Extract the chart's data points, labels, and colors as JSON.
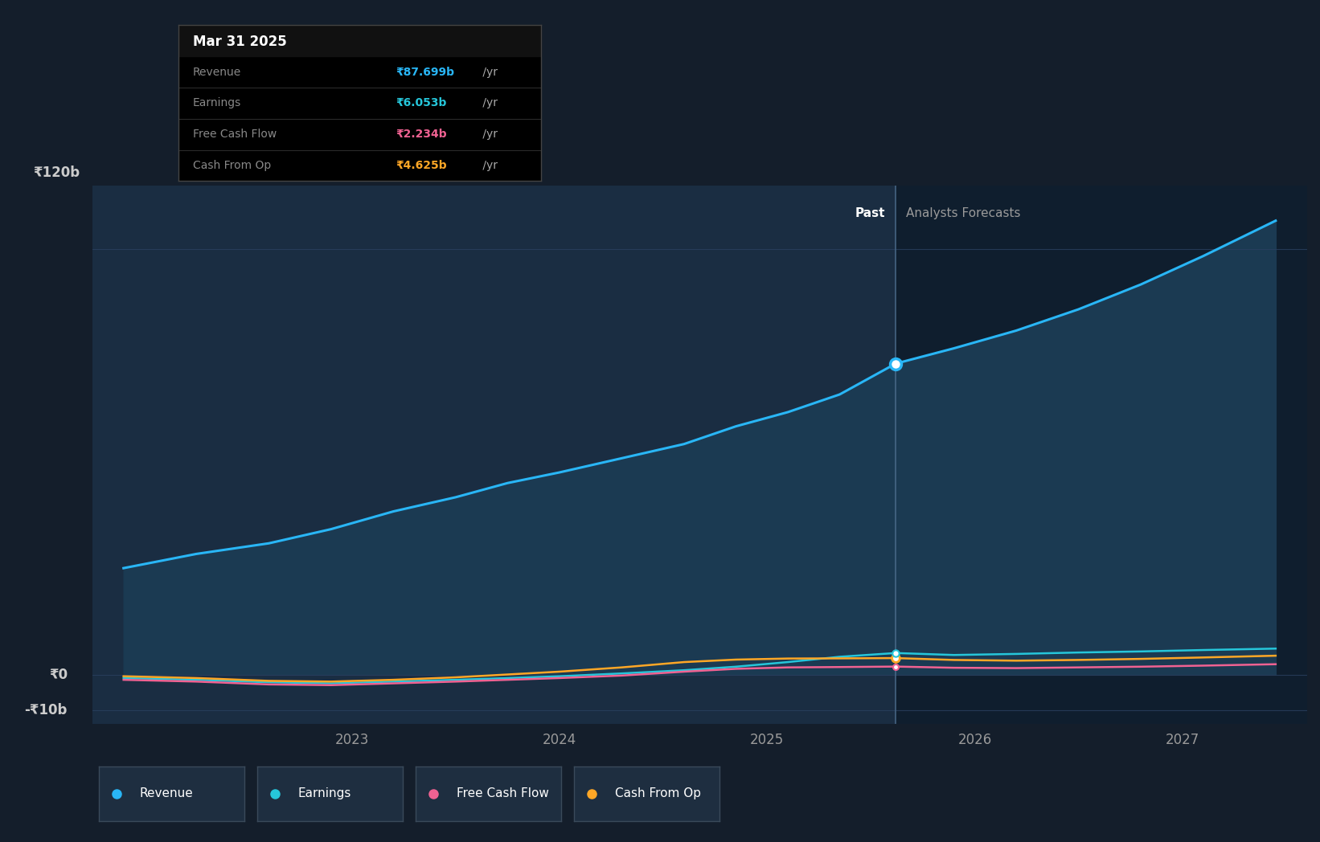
{
  "bg_color": "#141e2b",
  "plot_bg_left": "#1a2d42",
  "plot_bg_right": "#0f1e2e",
  "fill_color": "#1b3a52",
  "x_min": 2021.75,
  "x_max": 2027.6,
  "y_min": -14,
  "y_max": 138,
  "divider_x": 2025.62,
  "revenue_x": [
    2021.9,
    2022.25,
    2022.6,
    2022.9,
    2023.2,
    2023.5,
    2023.75,
    2024.0,
    2024.3,
    2024.6,
    2024.85,
    2025.1,
    2025.35,
    2025.62,
    2025.9,
    2026.2,
    2026.5,
    2026.8,
    2027.1,
    2027.45
  ],
  "revenue_y": [
    30,
    34,
    37,
    41,
    46,
    50,
    54,
    57,
    61,
    65,
    70,
    74,
    79,
    87.699,
    92,
    97,
    103,
    110,
    118,
    128
  ],
  "earnings_x": [
    2021.9,
    2022.25,
    2022.6,
    2022.9,
    2023.2,
    2023.5,
    2023.75,
    2024.0,
    2024.3,
    2024.6,
    2024.85,
    2025.1,
    2025.35,
    2025.62,
    2025.9,
    2026.2,
    2026.5,
    2026.8,
    2027.1,
    2027.45
  ],
  "earnings_y": [
    -1.0,
    -1.5,
    -2.2,
    -2.5,
    -2.0,
    -1.5,
    -1.0,
    -0.5,
    0.3,
    1.2,
    2.2,
    3.5,
    5.0,
    6.053,
    5.5,
    5.8,
    6.2,
    6.5,
    6.9,
    7.3
  ],
  "fcf_x": [
    2021.9,
    2022.25,
    2022.6,
    2022.9,
    2023.2,
    2023.5,
    2023.75,
    2024.0,
    2024.3,
    2024.6,
    2024.85,
    2025.1,
    2025.35,
    2025.62,
    2025.9,
    2026.2,
    2026.5,
    2026.8,
    2027.1,
    2027.45
  ],
  "fcf_y": [
    -1.5,
    -2.0,
    -2.8,
    -3.0,
    -2.5,
    -2.0,
    -1.5,
    -1.0,
    -0.3,
    0.8,
    1.6,
    2.0,
    2.1,
    2.234,
    1.9,
    1.8,
    2.0,
    2.2,
    2.5,
    2.9
  ],
  "cashfromop_x": [
    2021.9,
    2022.25,
    2022.6,
    2022.9,
    2023.2,
    2023.5,
    2023.75,
    2024.0,
    2024.3,
    2024.6,
    2024.85,
    2025.1,
    2025.35,
    2025.62,
    2025.9,
    2026.2,
    2026.5,
    2026.8,
    2027.1,
    2027.45
  ],
  "cashfromop_y": [
    -0.5,
    -1.0,
    -1.8,
    -2.0,
    -1.5,
    -0.8,
    0.0,
    0.8,
    2.0,
    3.5,
    4.2,
    4.5,
    4.55,
    4.625,
    4.1,
    3.9,
    4.1,
    4.4,
    4.8,
    5.3
  ],
  "revenue_color": "#29b6f6",
  "earnings_color": "#26c6da",
  "fcf_color": "#f06292",
  "cashfromop_color": "#ffa726",
  "ytick_labels": [
    "₹120b",
    "₹0",
    "-₹10b"
  ],
  "ytick_values": [
    120,
    0,
    -10
  ],
  "xtick_labels": [
    "2023",
    "2024",
    "2025",
    "2026",
    "2027"
  ],
  "xtick_values": [
    2023,
    2024,
    2025,
    2026,
    2027
  ],
  "past_label": "Past",
  "forecast_label": "Analysts Forecasts",
  "tooltip_title": "Mar 31 2025",
  "tooltip_rows": [
    {
      "label": "Revenue",
      "value": "₹87.699b",
      "unit": " /yr",
      "color": "#29b6f6"
    },
    {
      "label": "Earnings",
      "value": "₹6.053b",
      "unit": " /yr",
      "color": "#26c6da"
    },
    {
      "label": "Free Cash Flow",
      "value": "₹2.234b",
      "unit": " /yr",
      "color": "#f06292"
    },
    {
      "label": "Cash From Op",
      "value": "₹4.625b",
      "unit": " /yr",
      "color": "#ffa726"
    }
  ],
  "legend_items": [
    {
      "label": "Revenue",
      "color": "#29b6f6"
    },
    {
      "label": "Earnings",
      "color": "#26c6da"
    },
    {
      "label": "Free Cash Flow",
      "color": "#f06292"
    },
    {
      "label": "Cash From Op",
      "color": "#ffa726"
    }
  ]
}
